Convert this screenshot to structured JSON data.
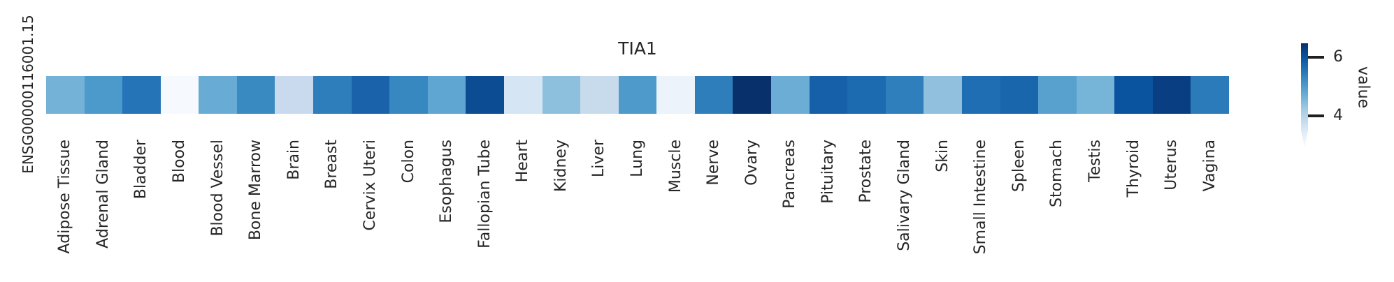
{
  "window": {
    "background": "#ffffff"
  },
  "chart_data": {
    "type": "heatmap",
    "title": "TIA1",
    "row_label": "ENSG00000116001.15",
    "colormap": "Blues",
    "grid": false,
    "legend_position": "right",
    "categories": [
      "Adipose Tissue",
      "Adrenal Gland",
      "Bladder",
      "Blood",
      "Blood Vessel",
      "Bone Marrow",
      "Brain",
      "Breast",
      "Cervix Uteri",
      "Colon",
      "Esophagus",
      "Fallopian Tube",
      "Heart",
      "Kidney",
      "Liver",
      "Lung",
      "Muscle",
      "Nerve",
      "Ovary",
      "Pancreas",
      "Pituitary",
      "Prostate",
      "Salivary Gland",
      "Skin",
      "Small Intestine",
      "Spleen",
      "Stomach",
      "Testis",
      "Thyroid",
      "Uterus",
      "Vagina"
    ],
    "series": [
      {
        "name": "ENSG00000116001.15",
        "values": [
          4.7,
          5.0,
          5.6,
          3.0,
          4.8,
          5.25,
          3.8,
          5.5,
          5.8,
          5.3,
          4.9,
          6.1,
          3.6,
          4.4,
          3.8,
          5.0,
          3.2,
          5.5,
          6.5,
          4.75,
          5.9,
          5.75,
          5.45,
          4.35,
          5.65,
          5.8,
          4.95,
          4.65,
          6.0,
          6.3,
          5.55
        ]
      }
    ],
    "cell_colors": [
      "#74b2d8",
      "#4c9acb",
      "#2674b8",
      "#f6fafe",
      "#68acd5",
      "#3a8ac2",
      "#c9daee",
      "#2e7ebc",
      "#1a63aa",
      "#3787c0",
      "#60a6d2",
      "#0c4c93",
      "#d5e5f4",
      "#8dc0dd",
      "#c8dbed",
      "#4e9bcb",
      "#edf3fb",
      "#2e7ebc",
      "#08306b",
      "#6cadd5",
      "#1560a8",
      "#1c6ab0",
      "#2f7fbc",
      "#90c0de",
      "#1f6eb3",
      "#1a66ac",
      "#58a1cf",
      "#76b4d8",
      "#0a539e",
      "#093f82",
      "#2b7bba"
    ],
    "value_range_shown": [
      3.0,
      6.5
    ],
    "colorbar": {
      "label": "value",
      "extend": "min",
      "gradient_top_color": "#08306b",
      "gradient_bottom_color": "#f7fbff",
      "ticks": [
        {
          "label": "4",
          "value": 4
        },
        {
          "label": "6",
          "value": 6
        }
      ]
    }
  }
}
